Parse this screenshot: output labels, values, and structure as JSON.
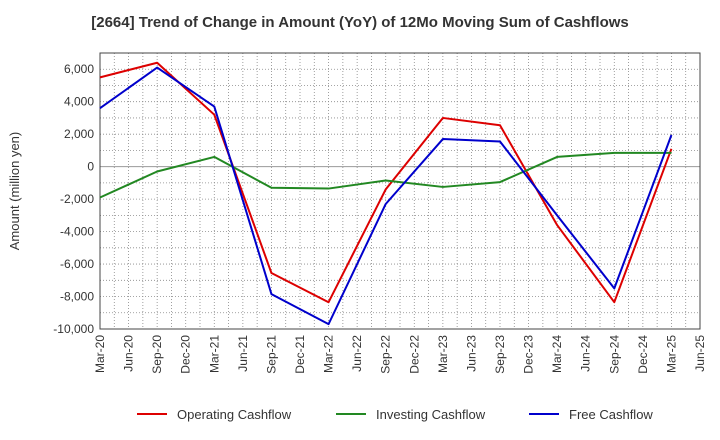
{
  "chart_data": {
    "type": "line",
    "title": "[2664]  Trend of Change in Amount (YoY) of 12Mo Moving Sum of Cashflows",
    "xlabel": "",
    "ylabel": "Amount (million yen)",
    "ylim": [
      -10000,
      7000
    ],
    "yticks": [
      6000,
      4000,
      2000,
      0,
      -2000,
      -4000,
      -6000,
      -8000,
      -10000
    ],
    "ytick_labels": [
      "6,000",
      "4,000",
      "2,000",
      "0",
      "-2,000",
      "-4,000",
      "-6,000",
      "-8,000",
      "-10,000"
    ],
    "categories": [
      "Mar-20",
      "Jun-20",
      "Sep-20",
      "Dec-20",
      "Mar-21",
      "Jun-21",
      "Sep-21",
      "Dec-21",
      "Mar-22",
      "Jun-22",
      "Sep-22",
      "Dec-22",
      "Mar-23",
      "Jun-23",
      "Sep-23",
      "Dec-23",
      "Mar-24",
      "Jun-24",
      "Sep-24",
      "Dec-24",
      "Mar-25",
      "Jun-25"
    ],
    "grid": true,
    "legend_position": "bottom",
    "series": [
      {
        "name": "Operating Cashflow",
        "color": "#dd0000",
        "points": [
          {
            "x": "Mar-20",
            "y": 5500
          },
          {
            "x": "Sep-20",
            "y": 6400
          },
          {
            "x": "Mar-21",
            "y": 3200
          },
          {
            "x": "Sep-21",
            "y": -6550
          },
          {
            "x": "Mar-22",
            "y": -8350
          },
          {
            "x": "Sep-22",
            "y": -1400
          },
          {
            "x": "Mar-23",
            "y": 3000
          },
          {
            "x": "Sep-23",
            "y": 2550
          },
          {
            "x": "Mar-24",
            "y": -3600
          },
          {
            "x": "Sep-24",
            "y": -8350
          },
          {
            "x": "Mar-25",
            "y": 1100
          }
        ]
      },
      {
        "name": "Investing Cashflow",
        "color": "#228822",
        "points": [
          {
            "x": "Mar-20",
            "y": -1900
          },
          {
            "x": "Sep-20",
            "y": -300
          },
          {
            "x": "Mar-21",
            "y": 600
          },
          {
            "x": "Sep-21",
            "y": -1300
          },
          {
            "x": "Mar-22",
            "y": -1350
          },
          {
            "x": "Sep-22",
            "y": -850
          },
          {
            "x": "Mar-23",
            "y": -1250
          },
          {
            "x": "Sep-23",
            "y": -950
          },
          {
            "x": "Mar-24",
            "y": 600
          },
          {
            "x": "Sep-24",
            "y": 850
          },
          {
            "x": "Mar-25",
            "y": 850
          }
        ]
      },
      {
        "name": "Free Cashflow",
        "color": "#0000cc",
        "points": [
          {
            "x": "Mar-20",
            "y": 3600
          },
          {
            "x": "Sep-20",
            "y": 6100
          },
          {
            "x": "Mar-21",
            "y": 3700
          },
          {
            "x": "Sep-21",
            "y": -7850
          },
          {
            "x": "Mar-22",
            "y": -9700
          },
          {
            "x": "Sep-22",
            "y": -2300
          },
          {
            "x": "Mar-23",
            "y": 1700
          },
          {
            "x": "Sep-23",
            "y": 1550
          },
          {
            "x": "Mar-24",
            "y": -3000
          },
          {
            "x": "Sep-24",
            "y": -7500
          },
          {
            "x": "Mar-25",
            "y": 1950
          }
        ]
      }
    ]
  }
}
